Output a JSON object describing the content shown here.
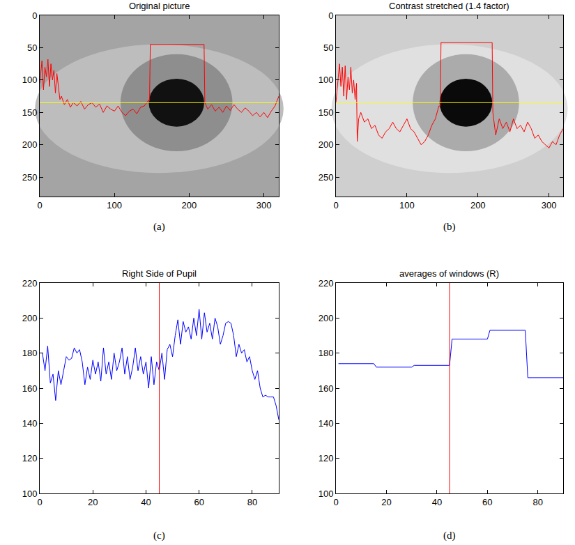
{
  "chart_data": [
    {
      "type": "line",
      "title": "Original picture",
      "label": "(a)",
      "xlim": [
        0,
        320
      ],
      "xticks": [
        0,
        100,
        200,
        300
      ],
      "ylim": [
        280,
        0
      ],
      "yticks": [
        0,
        50,
        100,
        150,
        200,
        250
      ],
      "series": [
        {
          "color": "#ff0000",
          "x": [
            0,
            3,
            5,
            7,
            9,
            11,
            13,
            15,
            17,
            19,
            21,
            23,
            25,
            27,
            29,
            33,
            37,
            41,
            45,
            50,
            55,
            60,
            65,
            70,
            75,
            80,
            85,
            90,
            95,
            100,
            105,
            110,
            115,
            120,
            125,
            130,
            135,
            140,
            145,
            147,
            148,
            220,
            221,
            225,
            230,
            235,
            240,
            245,
            250,
            255,
            260,
            265,
            270,
            275,
            280,
            285,
            290,
            295,
            300,
            305,
            310,
            315,
            320
          ],
          "values": [
            105,
            70,
            115,
            80,
            95,
            68,
            110,
            75,
            100,
            85,
            120,
            90,
            110,
            130,
            125,
            138,
            130,
            142,
            135,
            140,
            133,
            145,
            138,
            135,
            142,
            137,
            150,
            140,
            145,
            148,
            140,
            150,
            155,
            148,
            145,
            152,
            142,
            140,
            132,
            132,
            45,
            45,
            135,
            145,
            138,
            148,
            142,
            150,
            140,
            147,
            138,
            145,
            150,
            143,
            148,
            155,
            150,
            157,
            150,
            158,
            148,
            140,
            125
          ]
        },
        {
          "color": "#ffff00",
          "x": [
            0,
            320
          ],
          "values": [
            135,
            135
          ]
        }
      ]
    },
    {
      "type": "line",
      "title": "Contrast stretched (1.4 factor)",
      "label": "(b)",
      "xlim": [
        0,
        320
      ],
      "xticks": [
        0,
        100,
        200,
        300
      ],
      "ylim": [
        280,
        0
      ],
      "yticks": [
        0,
        50,
        100,
        150,
        200,
        250
      ],
      "series": [
        {
          "color": "#ff0000",
          "x": [
            0,
            3,
            5,
            7,
            9,
            11,
            13,
            15,
            17,
            19,
            21,
            23,
            25,
            27,
            29,
            30,
            32,
            35,
            40,
            45,
            50,
            55,
            60,
            65,
            70,
            75,
            80,
            85,
            90,
            95,
            100,
            105,
            110,
            115,
            120,
            125,
            130,
            135,
            140,
            145,
            147,
            148,
            220,
            221,
            225,
            230,
            235,
            240,
            245,
            250,
            255,
            260,
            265,
            270,
            275,
            280,
            285,
            290,
            295,
            300,
            305,
            310,
            315,
            320
          ],
          "values": [
            135,
            100,
            75,
            110,
            80,
            125,
            78,
            130,
            95,
            115,
            80,
            120,
            100,
            130,
            105,
            195,
            160,
            150,
            165,
            160,
            175,
            170,
            185,
            190,
            180,
            175,
            165,
            175,
            180,
            170,
            160,
            175,
            180,
            190,
            200,
            195,
            185,
            170,
            160,
            140,
            140,
            42,
            42,
            150,
            185,
            160,
            175,
            165,
            180,
            160,
            175,
            170,
            180,
            165,
            175,
            190,
            185,
            195,
            200,
            205,
            195,
            200,
            185,
            175
          ]
        },
        {
          "color": "#ffff00",
          "x": [
            0,
            320
          ],
          "values": [
            135,
            135
          ]
        }
      ]
    },
    {
      "type": "line",
      "title": "Right Side of Pupil",
      "label": "(c)",
      "xlim": [
        0,
        90
      ],
      "xticks": [
        0,
        20,
        40,
        60,
        80
      ],
      "ylim": [
        100,
        220
      ],
      "yticks": [
        100,
        120,
        140,
        160,
        180,
        200,
        220
      ],
      "series": [
        {
          "color": "#0000ff",
          "x": [
            1,
            2,
            3,
            4,
            5,
            6,
            7,
            8,
            9,
            10,
            11,
            12,
            13,
            14,
            15,
            16,
            17,
            18,
            19,
            20,
            21,
            22,
            23,
            24,
            25,
            26,
            27,
            28,
            29,
            30,
            31,
            32,
            33,
            34,
            35,
            36,
            37,
            38,
            39,
            40,
            41,
            42,
            43,
            44,
            45,
            46,
            47,
            48,
            49,
            50,
            51,
            52,
            53,
            54,
            55,
            56,
            57,
            58,
            59,
            60,
            61,
            62,
            63,
            64,
            65,
            66,
            67,
            68,
            69,
            70,
            71,
            72,
            73,
            74,
            75,
            76,
            77,
            78,
            79,
            80,
            81,
            82,
            83,
            84,
            85,
            86,
            87,
            88,
            89,
            90
          ],
          "values": [
            180,
            170,
            184,
            163,
            168,
            153,
            170,
            162,
            170,
            178,
            176,
            177,
            183,
            180,
            182,
            175,
            162,
            172,
            165,
            176,
            168,
            175,
            164,
            183,
            168,
            175,
            165,
            180,
            170,
            175,
            183,
            168,
            178,
            165,
            172,
            183,
            170,
            178,
            168,
            175,
            160,
            178,
            162,
            175,
            170,
            180,
            165,
            182,
            185,
            178,
            190,
            199,
            185,
            198,
            192,
            195,
            188,
            200,
            190,
            205,
            188,
            203,
            192,
            197,
            188,
            200,
            195,
            185,
            190,
            197,
            198,
            197,
            190,
            178,
            185,
            180,
            182,
            175,
            178,
            170,
            165,
            170,
            160,
            155,
            156,
            155,
            155,
            155,
            150,
            142
          ]
        },
        {
          "color": "#ff0000",
          "x": [
            45,
            45
          ],
          "values": [
            100,
            220
          ]
        }
      ]
    },
    {
      "type": "line",
      "title": "averages of windows (R)",
      "label": "(d)",
      "xlim": [
        0,
        90
      ],
      "xticks": [
        0,
        20,
        40,
        60,
        80
      ],
      "ylim": [
        100,
        220
      ],
      "yticks": [
        100,
        120,
        140,
        160,
        180,
        200,
        220
      ],
      "series": [
        {
          "color": "#0000ff",
          "x": [
            1,
            15,
            16,
            30,
            31,
            45,
            46,
            60,
            61,
            75,
            76,
            90
          ],
          "values": [
            174,
            174,
            172,
            172,
            173,
            173,
            188,
            188,
            193,
            193,
            166,
            166
          ]
        },
        {
          "color": "#ff0000",
          "x": [
            45,
            45
          ],
          "values": [
            100,
            220
          ]
        }
      ]
    }
  ]
}
